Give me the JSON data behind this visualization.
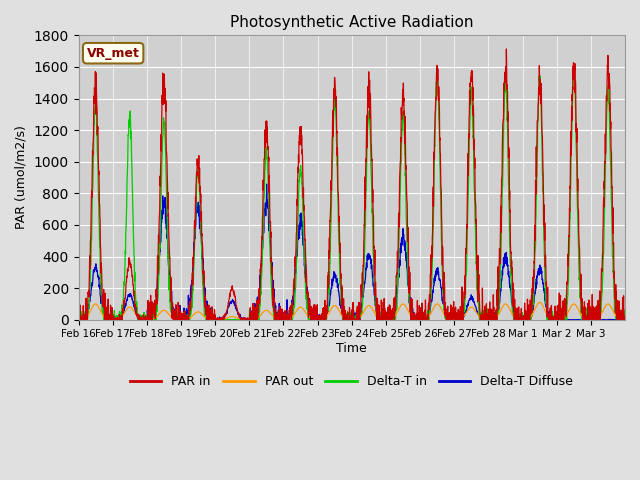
{
  "title": "Photosynthetic Active Radiation",
  "ylabel": "PAR (umol/m2/s)",
  "xlabel": "Time",
  "label_box": "VR_met",
  "ylim": [
    0,
    1800
  ],
  "fig_bg": "#e0e0e0",
  "plot_bg": "#d0d0d0",
  "xtick_labels": [
    "Feb 16",
    "Feb 17",
    "Feb 18",
    "Feb 19",
    "Feb 20",
    "Feb 21",
    "Feb 22",
    "Feb 23",
    "Feb 24",
    "Feb 25",
    "Feb 26",
    "Feb 27",
    "Feb 28",
    "Mar 1",
    "Mar 2",
    "Mar 3"
  ],
  "legend_labels": [
    "PAR in",
    "PAR out",
    "Delta-T in",
    "Delta-T Diffuse"
  ],
  "legend_colors": [
    "#cc0000",
    "#ff9900",
    "#00cc00",
    "#0000cc"
  ],
  "num_days": 16,
  "day_peaks_par_in": [
    1480,
    370,
    1520,
    1000,
    200,
    1220,
    1200,
    1460,
    1450,
    1400,
    1560,
    1570,
    1630,
    1540,
    1600,
    1600
  ],
  "day_peaks_par_out": [
    100,
    80,
    60,
    50,
    20,
    60,
    80,
    90,
    90,
    100,
    100,
    80,
    100,
    110,
    100,
    100
  ],
  "day_peaks_delta_in": [
    1350,
    1300,
    1250,
    940,
    0,
    1060,
    960,
    1400,
    1300,
    1290,
    1550,
    1440,
    1510,
    1530,
    1570,
    1450
  ],
  "day_peaks_delta_diff": [
    330,
    160,
    730,
    700,
    120,
    750,
    630,
    280,
    420,
    520,
    310,
    140,
    390,
    320,
    0,
    0
  ],
  "par_in_color": "#cc0000",
  "par_out_color": "#ff9900",
  "delta_in_color": "#00cc00",
  "delta_diff_color": "#0000cc"
}
